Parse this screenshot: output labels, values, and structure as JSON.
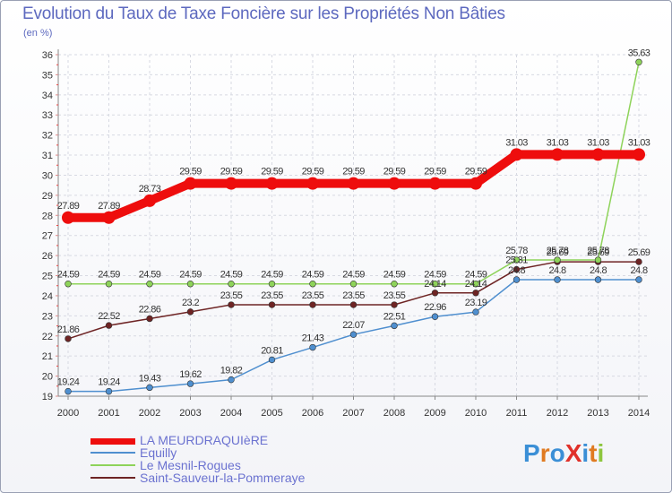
{
  "title": "Evolution du Taux de Taxe Foncière sur les Propriétés Non Bâties",
  "unit_label": "(en %)",
  "logo": {
    "text": "ProXiti",
    "letters": [
      "P",
      "r",
      "o",
      "X",
      "i",
      "t",
      "i"
    ],
    "colors": [
      "#3b8fd6",
      "#e07b22",
      "#3b8fd6",
      "#e0302a",
      "#3b8fd6",
      "#e07b22",
      "#8dc63f"
    ]
  },
  "chart_data": {
    "type": "line",
    "title": "Evolution du Taux de Taxe Foncière sur les Propriétés Non Bâties",
    "ylabel": "(en %)",
    "xlabel": "",
    "ylim": [
      19,
      36
    ],
    "yticks": [
      19,
      20,
      21,
      22,
      23,
      24,
      25,
      26,
      27,
      28,
      29,
      30,
      31,
      32,
      33,
      34,
      35,
      36
    ],
    "categories": [
      "2000",
      "2001",
      "2002",
      "2003",
      "2004",
      "2005",
      "2006",
      "2007",
      "2008",
      "2009",
      "2010",
      "2011",
      "2012",
      "2013",
      "2014"
    ],
    "series": [
      {
        "name": "Saint-Sauveur-la-Pommeraye",
        "color": "#6e2424",
        "values": [
          21.86,
          22.52,
          22.86,
          23.2,
          23.55,
          23.55,
          23.55,
          23.55,
          23.55,
          24.14,
          24.14,
          25.31,
          25.69,
          25.69,
          25.69
        ],
        "labels": [
          "21.86",
          "22.52",
          "22.86",
          "23.2",
          "23.55",
          "23.55",
          "23.55",
          "23.55",
          "23.55",
          "24.14",
          "24.14",
          "25.31",
          "25.69",
          "25.69",
          "25.69"
        ]
      },
      {
        "name": "Equilly",
        "color": "#4f8fcf",
        "values": [
          19.24,
          19.24,
          19.43,
          19.62,
          19.82,
          20.81,
          21.43,
          22.07,
          22.51,
          22.96,
          23.19,
          24.8,
          24.8,
          24.8,
          24.8
        ],
        "labels": [
          "19.24",
          "19.24",
          "19.43",
          "19.62",
          "19.82",
          "20.81",
          "21.43",
          "22.07",
          "22.51",
          "22.96",
          "23.19",
          "24.8",
          "24.8",
          "24.8",
          "24.8"
        ]
      },
      {
        "name": "Le Mesnil-Rogues",
        "color": "#8ed35a",
        "values": [
          24.59,
          24.59,
          24.59,
          24.59,
          24.59,
          24.59,
          24.59,
          24.59,
          24.59,
          24.59,
          24.59,
          25.78,
          25.78,
          25.78,
          35.63
        ],
        "labels": [
          "24.59",
          "24.59",
          "24.59",
          "24.59",
          "24.59",
          "24.59",
          "24.59",
          "24.59",
          "24.59",
          "24.59",
          "24.59",
          "25.78",
          "25.78",
          "25.78",
          "35.63"
        ]
      },
      {
        "name": "LA MEURDRAQUIèRE",
        "color": "#ee0d0d",
        "values": [
          27.89,
          27.89,
          28.73,
          29.59,
          29.59,
          29.59,
          29.59,
          29.59,
          29.59,
          29.59,
          29.59,
          31.03,
          31.03,
          31.03,
          31.03
        ],
        "labels": [
          "27.89",
          "27.89",
          "28.73",
          "29.59",
          "29.59",
          "29.59",
          "29.59",
          "29.59",
          "29.59",
          "29.59",
          "29.59",
          "31.03",
          "31.03",
          "31.03",
          "31.03"
        ]
      }
    ],
    "legend": [
      {
        "name": "LA MEURDRAQUIèRE",
        "color": "#ee0d0d",
        "thick": true
      },
      {
        "name": "Equilly",
        "color": "#4f8fcf",
        "thick": false
      },
      {
        "name": "Le Mesnil-Rogues",
        "color": "#8ed35a",
        "thick": false
      },
      {
        "name": "Saint-Sauveur-la-Pommeraye",
        "color": "#6e2424",
        "thick": false
      }
    ]
  }
}
